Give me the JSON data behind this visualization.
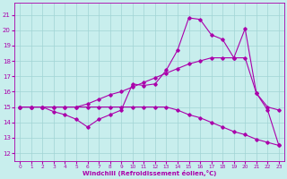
{
  "xlabel": "Windchill (Refroidissement éolien,°C)",
  "xlim": [
    -0.5,
    23.5
  ],
  "ylim": [
    11.5,
    21.8
  ],
  "yticks": [
    12,
    13,
    14,
    15,
    16,
    17,
    18,
    19,
    20,
    21
  ],
  "xticks": [
    0,
    1,
    2,
    3,
    4,
    5,
    6,
    7,
    8,
    9,
    10,
    11,
    12,
    13,
    14,
    15,
    16,
    17,
    18,
    19,
    20,
    21,
    22,
    23
  ],
  "bg_color": "#c8eeed",
  "grid_color": "#a0d4d4",
  "line_color": "#aa00aa",
  "line1_x": [
    0,
    1,
    2,
    3,
    4,
    5,
    6,
    7,
    8,
    9,
    10,
    11,
    12,
    13,
    14,
    15,
    16,
    17,
    18,
    19,
    20,
    21,
    22,
    23
  ],
  "line1_y": [
    15.0,
    15.0,
    15.0,
    15.0,
    15.0,
    15.0,
    15.2,
    15.5,
    15.8,
    16.0,
    16.3,
    16.6,
    16.9,
    17.2,
    17.5,
    17.8,
    18.0,
    18.2,
    18.2,
    18.2,
    18.2,
    15.9,
    15.0,
    14.8
  ],
  "line2_x": [
    0,
    1,
    2,
    3,
    4,
    5,
    6,
    7,
    8,
    9,
    10,
    11,
    12,
    13,
    14,
    15,
    16,
    17,
    18,
    19,
    20,
    21,
    22,
    23
  ],
  "line2_y": [
    15.0,
    15.0,
    15.0,
    14.7,
    14.5,
    14.2,
    13.7,
    14.2,
    14.5,
    14.8,
    16.5,
    16.4,
    16.5,
    17.4,
    18.7,
    20.8,
    20.7,
    19.7,
    19.4,
    18.2,
    20.1,
    15.9,
    14.8,
    12.5
  ],
  "line3_x": [
    0,
    1,
    2,
    3,
    4,
    5,
    6,
    7,
    8,
    9,
    10,
    11,
    12,
    13,
    14,
    15,
    16,
    17,
    18,
    19,
    20,
    21,
    22,
    23
  ],
  "line3_y": [
    15.0,
    15.0,
    15.0,
    15.0,
    15.0,
    15.0,
    15.0,
    15.0,
    15.0,
    15.0,
    15.0,
    15.0,
    15.0,
    15.0,
    14.8,
    14.5,
    14.3,
    14.0,
    13.7,
    13.4,
    13.2,
    12.9,
    12.7,
    12.5
  ]
}
